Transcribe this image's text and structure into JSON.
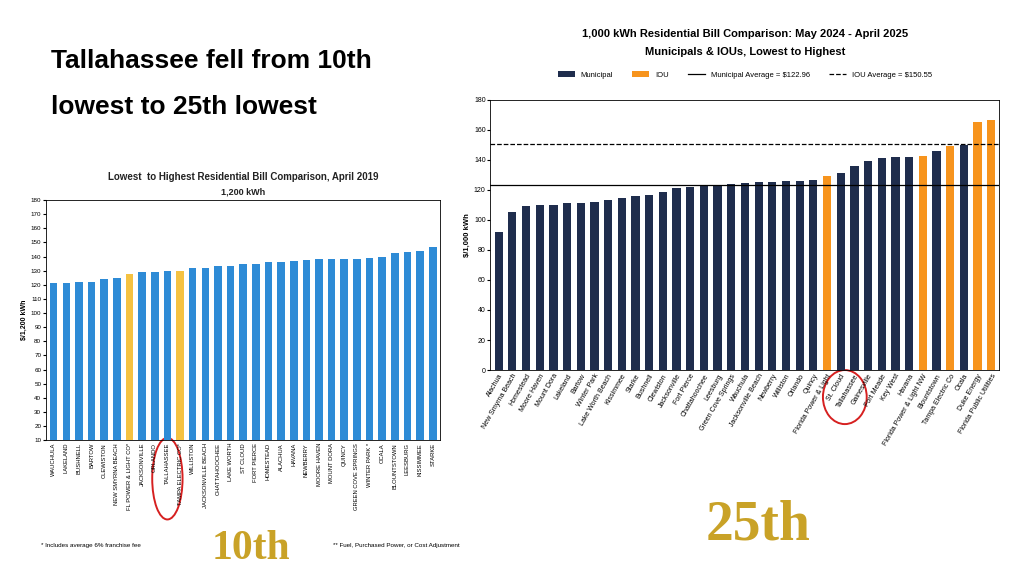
{
  "headline": [
    "Tallahassee fell from 10th",
    "lowest to 25th lowest"
  ],
  "badges": [
    "10th",
    "25th"
  ],
  "chart_data": [
    {
      "type": "bar",
      "title": "Lowest  to Highest Residential Bill Comparison, April 2019",
      "subtitle": "1,200 kWh",
      "y_label": "$/1,200 kWh",
      "categories": [
        "WAUCHULA",
        "LAKELAND",
        "BUSHNELL",
        "BARTOW",
        "CLEWISTON",
        "NEW SMYRNA BEACH",
        "FL POWER & LIGHT CO*",
        "JACKSONVILLE",
        "ORLANDO",
        "TALLAHASSEE",
        "TAMPA ELECTRIC CO*",
        "WILLISTON",
        "JACKSONVILLE BEACH",
        "CHATTAHOOCHEE",
        "LAKE WORTH",
        "ST CLOUD",
        "FORT PIERCE",
        "HOMESTEAD",
        "ALACHUA",
        "HAVANA",
        "NEWBERRY",
        "MOORE HAVEN",
        "MOUNT DORA",
        "QUINCY",
        "GREEN COVE SPRINGS",
        "WINTER PARK *",
        "OCALA",
        "BLOUNTSTOWN",
        "LEESBURG",
        "KISSIMMEE",
        "STARKE"
      ],
      "values": [
        121,
        121,
        122,
        122,
        124,
        125,
        128,
        129,
        129,
        129.5,
        130,
        132,
        132,
        133,
        133,
        134.5,
        135,
        136,
        136.5,
        137,
        137.5,
        138,
        138,
        138.5,
        138.5,
        139,
        140,
        142.5,
        143.5,
        144,
        147
      ],
      "colors": [
        "#2e8bd6",
        "#2e8bd6",
        "#2e8bd6",
        "#2e8bd6",
        "#2e8bd6",
        "#2e8bd6",
        "#f5c242",
        "#2e8bd6",
        "#2e8bd6",
        "#2e8bd6",
        "#f5c242",
        "#2e8bd6",
        "#2e8bd6",
        "#2e8bd6",
        "#2e8bd6",
        "#2e8bd6",
        "#2e8bd6",
        "#2e8bd6",
        "#2e8bd6",
        "#2e8bd6",
        "#2e8bd6",
        "#2e8bd6",
        "#2e8bd6",
        "#2e8bd6",
        "#2e8bd6",
        "#2e8bd6",
        "#2e8bd6",
        "#2e8bd6",
        "#2e8bd6",
        "#2e8bd6",
        "#2e8bd6"
      ],
      "ylim": [
        10,
        180
      ],
      "yticks": [
        10,
        20,
        30,
        40,
        50,
        60,
        70,
        80,
        90,
        100,
        110,
        120,
        130,
        140,
        150,
        160,
        170,
        180
      ],
      "grid": false,
      "notes": [
        "* Includes average 6% franchise fee",
        "** Fuel, Purchased Power, or Cost Adjustment"
      ]
    },
    {
      "type": "bar",
      "title": "1,000 kWh Residential Bill Comparison: May 2024 - April 2025",
      "subtitle": "Municipals & IOUs, Lowest to Highest",
      "y_label": "$/1,000 kWh",
      "categories": [
        "Alachua",
        "New Smyrna Beach",
        "Homestead",
        "Moore Haven",
        "Mount Dora",
        "Lakeland",
        "Bartow",
        "Winter Park",
        "Lake Worth Beach",
        "Kissimmee",
        "Starke",
        "Bushnell",
        "Clewiston",
        "Jacksonville",
        "Fort Pierce",
        "Chattahoochee",
        "Leesburg",
        "Green Cove Springs",
        "Wauchula",
        "Jacksonville Beach",
        "Newberry",
        "Williston",
        "Orlando",
        "Quincy",
        "Florida Power & Light",
        "St. Cloud",
        "Tallahassee",
        "Gainesville",
        "Fort Meade",
        "Key West",
        "Havana",
        "Florida Power & Light NW",
        "Blountstown",
        "Tampa Electric Co",
        "Ocala",
        "Duke Energy",
        "Florida Public Utilities"
      ],
      "series": [
        {
          "name": "Municipal",
          "color": "#1f2d4d",
          "values": [
            92,
            105,
            109,
            110,
            110,
            111,
            111.5,
            112,
            113,
            114.5,
            116,
            116.5,
            118.5,
            121.5,
            122,
            123,
            123.5,
            124,
            124.5,
            125,
            125.5,
            126,
            126,
            126.5,
            null,
            131,
            136,
            139.5,
            141,
            142,
            142,
            null,
            146,
            null,
            150,
            null,
            null
          ]
        },
        {
          "name": "IOU",
          "color": "#f7941d",
          "values": [
            null,
            null,
            null,
            null,
            null,
            null,
            null,
            null,
            null,
            null,
            null,
            null,
            null,
            null,
            null,
            null,
            null,
            null,
            null,
            null,
            null,
            null,
            null,
            null,
            129.5,
            null,
            null,
            null,
            null,
            null,
            null,
            142.5,
            null,
            149,
            null,
            165.5,
            166.5
          ]
        }
      ],
      "reference_lines": [
        {
          "name": "Municipal Average = $122.96",
          "value": 122.96,
          "color": "#000000",
          "line_style": "solid"
        },
        {
          "name": "IOU Average = $150.55",
          "value": 150.55,
          "color": "#000000",
          "line_style": "dashed"
        }
      ],
      "legend": "upper center",
      "ylim": [
        0,
        180
      ],
      "yticks": [
        0,
        20,
        40,
        60,
        80,
        100,
        120,
        140,
        160,
        180
      ],
      "grid": false
    }
  ]
}
